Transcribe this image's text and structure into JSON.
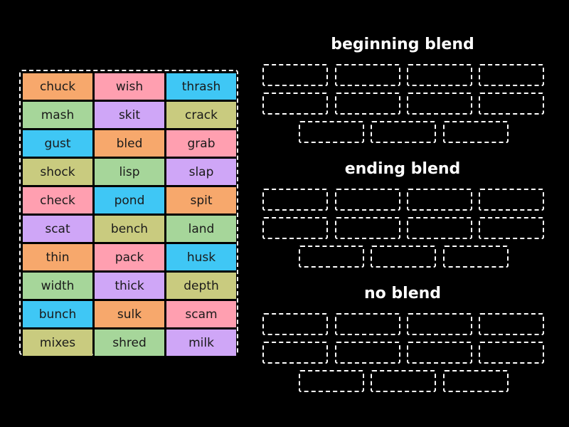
{
  "colors": {
    "background": "#000000",
    "orange": "#f7a86c",
    "pink": "#ff9fb0",
    "cyan": "#3fc7f5",
    "green": "#a6d69a",
    "purple": "#cfa6f7",
    "olive": "#c9cb7f",
    "dashed_border": "#ffffff"
  },
  "word_bank": {
    "rows": [
      [
        {
          "word": "chuck",
          "color": "#f7a86c"
        },
        {
          "word": "wish",
          "color": "#ff9fb0"
        },
        {
          "word": "thrash",
          "color": "#3fc7f5"
        }
      ],
      [
        {
          "word": "mash",
          "color": "#a6d69a"
        },
        {
          "word": "skit",
          "color": "#cfa6f7"
        },
        {
          "word": "crack",
          "color": "#c9cb7f"
        }
      ],
      [
        {
          "word": "gust",
          "color": "#3fc7f5"
        },
        {
          "word": "bled",
          "color": "#f7a86c"
        },
        {
          "word": "grab",
          "color": "#ff9fb0"
        }
      ],
      [
        {
          "word": "shock",
          "color": "#c9cb7f"
        },
        {
          "word": "lisp",
          "color": "#a6d69a"
        },
        {
          "word": "slap",
          "color": "#cfa6f7"
        }
      ],
      [
        {
          "word": "check",
          "color": "#ff9fb0"
        },
        {
          "word": "pond",
          "color": "#3fc7f5"
        },
        {
          "word": "spit",
          "color": "#f7a86c"
        }
      ],
      [
        {
          "word": "scat",
          "color": "#cfa6f7"
        },
        {
          "word": "bench",
          "color": "#c9cb7f"
        },
        {
          "word": "land",
          "color": "#a6d69a"
        }
      ],
      [
        {
          "word": "thin",
          "color": "#f7a86c"
        },
        {
          "word": "pack",
          "color": "#ff9fb0"
        },
        {
          "word": "husk",
          "color": "#3fc7f5"
        }
      ],
      [
        {
          "word": "width",
          "color": "#a6d69a"
        },
        {
          "word": "thick",
          "color": "#cfa6f7"
        },
        {
          "word": "depth",
          "color": "#c9cb7f"
        }
      ],
      [
        {
          "word": "bunch",
          "color": "#3fc7f5"
        },
        {
          "word": "sulk",
          "color": "#f7a86c"
        },
        {
          "word": "scam",
          "color": "#ff9fb0"
        }
      ],
      [
        {
          "word": "mixes",
          "color": "#c9cb7f"
        },
        {
          "word": "shred",
          "color": "#a6d69a"
        },
        {
          "word": "milk",
          "color": "#cfa6f7"
        }
      ]
    ]
  },
  "groups": [
    {
      "title": "beginning blend",
      "slot_count": 11
    },
    {
      "title": "ending blend",
      "slot_count": 11
    },
    {
      "title": "no blend",
      "slot_count": 11
    }
  ]
}
